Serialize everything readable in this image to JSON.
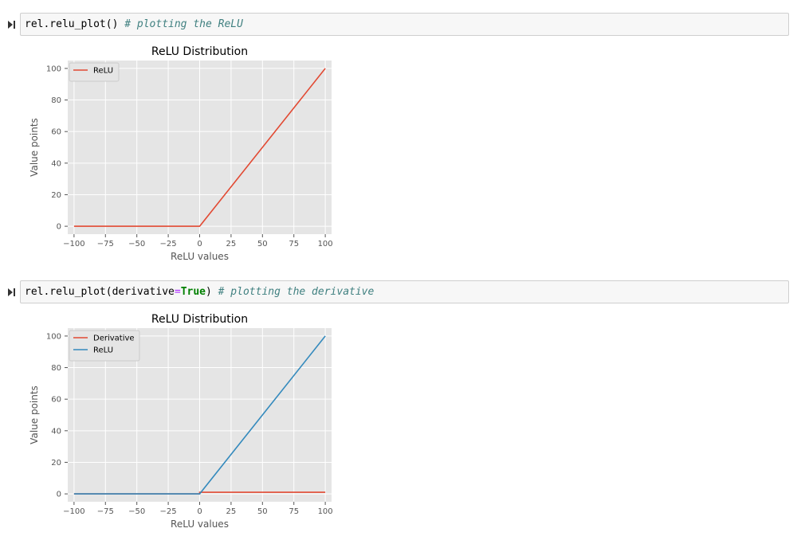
{
  "cells": [
    {
      "code": {
        "obj": "rel.relu_plot",
        "open": "(",
        "close": ")",
        "comment": "# plotting the ReLU"
      }
    },
    {
      "code": {
        "obj": "rel.relu_plot",
        "open": "(",
        "arg_name": "derivative",
        "op": "=",
        "arg_value": "True",
        "close": ")",
        "comment": "# plotting the derivative"
      }
    }
  ],
  "chart_data": [
    {
      "type": "line",
      "title": "ReLU Distribution",
      "xlabel": "ReLU values",
      "ylabel": "Value points",
      "xlim": [
        -105,
        105
      ],
      "ylim": [
        -5,
        105
      ],
      "xticks": [
        -100,
        -75,
        -50,
        -25,
        0,
        25,
        50,
        75,
        100
      ],
      "xtick_labels": [
        "−100",
        "−75",
        "−50",
        "−25",
        "0",
        "25",
        "50",
        "75",
        "100"
      ],
      "yticks": [
        0,
        20,
        40,
        60,
        80,
        100
      ],
      "ytick_labels": [
        "0",
        "20",
        "40",
        "60",
        "80",
        "100"
      ],
      "grid": true,
      "legend": "top-left",
      "series": [
        {
          "name": "ReLU",
          "color": "#e24a33",
          "x": [
            -100,
            0,
            100
          ],
          "y": [
            0,
            0,
            100
          ]
        }
      ]
    },
    {
      "type": "line",
      "title": "ReLU Distribution",
      "xlabel": "ReLU values",
      "ylabel": "Value points",
      "xlim": [
        -105,
        105
      ],
      "ylim": [
        -5,
        105
      ],
      "xticks": [
        -100,
        -75,
        -50,
        -25,
        0,
        25,
        50,
        75,
        100
      ],
      "xtick_labels": [
        "−100",
        "−75",
        "−50",
        "−25",
        "0",
        "25",
        "50",
        "75",
        "100"
      ],
      "yticks": [
        0,
        20,
        40,
        60,
        80,
        100
      ],
      "ytick_labels": [
        "0",
        "20",
        "40",
        "60",
        "80",
        "100"
      ],
      "grid": true,
      "legend": "top-left",
      "series": [
        {
          "name": "Derivative",
          "color": "#e24a33",
          "x": [
            -100,
            0,
            0,
            100
          ],
          "y": [
            0,
            0,
            1,
            1
          ]
        },
        {
          "name": "ReLU",
          "color": "#348abd",
          "x": [
            -100,
            0,
            100
          ],
          "y": [
            0,
            0,
            100
          ]
        }
      ]
    }
  ]
}
